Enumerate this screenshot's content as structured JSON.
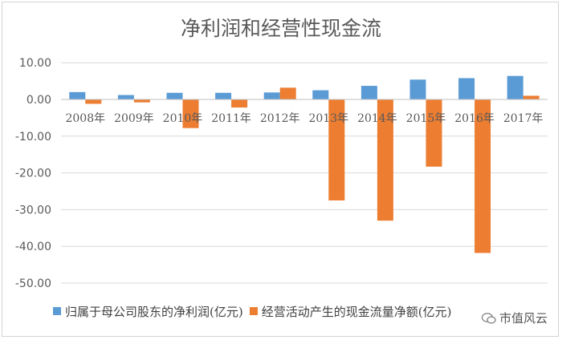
{
  "chart_data": {
    "type": "bar",
    "title": "净利润和经营性现金流",
    "categories": [
      "2008年",
      "2009年",
      "2010年",
      "2011年",
      "2012年",
      "2013年",
      "2014年",
      "2015年",
      "2016年",
      "2017年"
    ],
    "series": [
      {
        "name": "归属于母公司股东的净利润(亿元)",
        "color": "#5B9BD5",
        "values": [
          2.0,
          1.2,
          1.8,
          1.8,
          1.9,
          2.5,
          3.7,
          5.4,
          5.8,
          6.4
        ]
      },
      {
        "name": "经营活动产生的现金流量净额(亿元)",
        "color": "#ED7D31",
        "values": [
          -1.2,
          -0.8,
          -7.8,
          -2.2,
          3.2,
          -27.5,
          -33.0,
          -18.3,
          -41.8,
          1.0
        ]
      }
    ],
    "yticks": [
      "10.00",
      "0.00",
      "-10.00",
      "-20.00",
      "-30.00",
      "-40.00",
      "-50.00"
    ],
    "ylim": [
      -50,
      10
    ],
    "grid": true,
    "legend_position": "bottom"
  },
  "watermark": {
    "text": "市值风云"
  }
}
